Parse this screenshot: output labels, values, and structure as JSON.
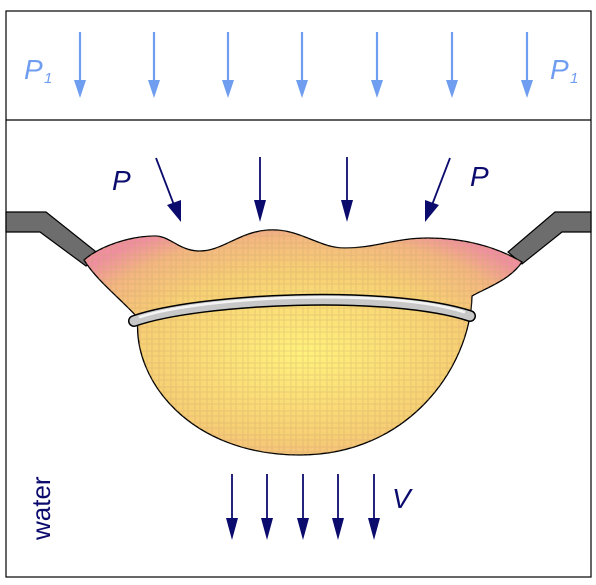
{
  "labels": {
    "p1_left": "P",
    "p1_left_sub": "1",
    "p1_right": "P",
    "p1_right_sub": "1",
    "p_left": "P",
    "p_right": "P",
    "v": "V",
    "water": "water"
  },
  "colors": {
    "top_arrows": "#6f9df0",
    "middle_arrows": "#0b0b6e",
    "outline": "#000000",
    "plate": "#6d6d6d",
    "ring": "#bdbdbd",
    "mass_center": "#fff07a",
    "mass_mid": "#f7cc72",
    "mass_edge": "#f0a8a0",
    "water_label": "#0b0b6e",
    "p1_label": "#6f9df0"
  }
}
